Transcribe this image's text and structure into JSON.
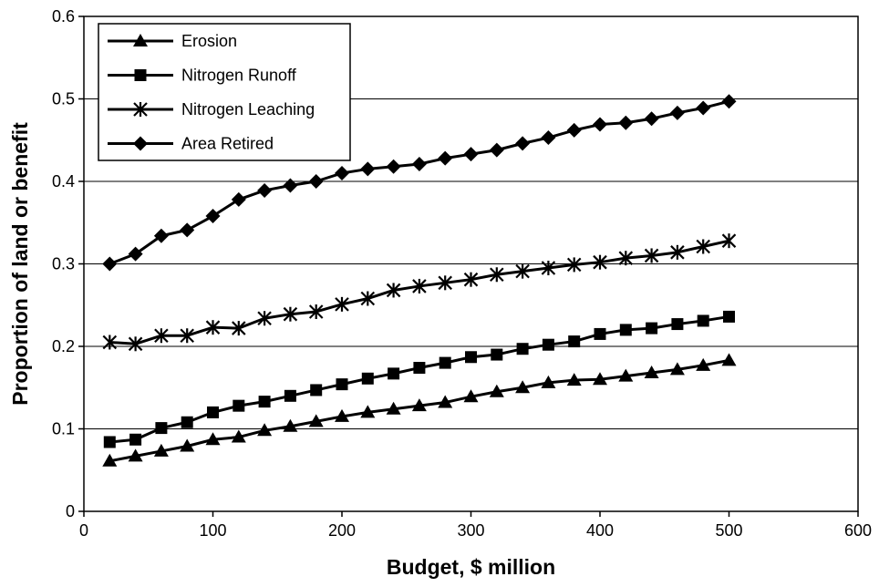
{
  "chart_data": {
    "type": "line",
    "xlabel": "Budget, $ million",
    "ylabel": "Proportion of land or benefit",
    "xlim": [
      0,
      600
    ],
    "ylim": [
      0,
      0.6
    ],
    "x_ticks": [
      "0",
      "100",
      "200",
      "300",
      "400",
      "500",
      "600"
    ],
    "y_ticks": [
      "0",
      "0.1",
      "0.2",
      "0.3",
      "0.4",
      "0.5",
      "0.6"
    ],
    "grid": "horizontal",
    "legend_position": "top-left",
    "line_color": "#000000",
    "x": [
      20,
      40,
      60,
      80,
      100,
      120,
      140,
      160,
      180,
      200,
      220,
      240,
      260,
      280,
      300,
      320,
      340,
      360,
      380,
      400,
      420,
      440,
      460,
      480,
      500
    ],
    "series": [
      {
        "name": "Erosion",
        "marker": "triangle",
        "values": [
          0.061,
          0.067,
          0.073,
          0.079,
          0.087,
          0.09,
          0.098,
          0.103,
          0.109,
          0.115,
          0.12,
          0.124,
          0.128,
          0.132,
          0.139,
          0.145,
          0.15,
          0.156,
          0.159,
          0.16,
          0.164,
          0.168,
          0.172,
          0.177,
          0.183
        ]
      },
      {
        "name": "Nitrogen Runoff",
        "marker": "square",
        "values": [
          0.084,
          0.087,
          0.101,
          0.108,
          0.12,
          0.128,
          0.133,
          0.14,
          0.147,
          0.154,
          0.161,
          0.167,
          0.174,
          0.18,
          0.187,
          0.19,
          0.197,
          0.202,
          0.206,
          0.215,
          0.22,
          0.222,
          0.227,
          0.231,
          0.236
        ]
      },
      {
        "name": "Nitrogen Leaching",
        "marker": "asterisk",
        "values": [
          0.205,
          0.203,
          0.213,
          0.213,
          0.223,
          0.222,
          0.234,
          0.239,
          0.242,
          0.251,
          0.258,
          0.268,
          0.273,
          0.277,
          0.281,
          0.287,
          0.291,
          0.295,
          0.299,
          0.302,
          0.307,
          0.31,
          0.314,
          0.321,
          0.328
        ]
      },
      {
        "name": "Area Retired",
        "marker": "diamond",
        "values": [
          0.3,
          0.312,
          0.334,
          0.341,
          0.358,
          0.378,
          0.389,
          0.395,
          0.4,
          0.41,
          0.415,
          0.418,
          0.421,
          0.428,
          0.433,
          0.438,
          0.446,
          0.453,
          0.462,
          0.469,
          0.471,
          0.476,
          0.483,
          0.489,
          0.497
        ]
      }
    ]
  }
}
